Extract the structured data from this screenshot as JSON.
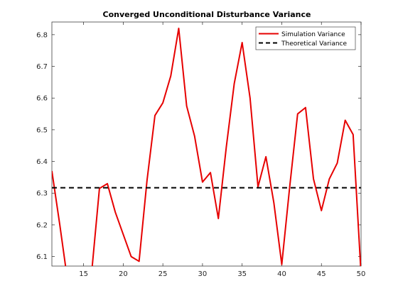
{
  "chart_data": {
    "type": "line",
    "title": "Converged Unconditional Disturbance Variance",
    "xlabel": "",
    "ylabel": "",
    "xlim": [
      11,
      50
    ],
    "ylim": [
      6.07,
      6.84
    ],
    "xticks": [
      15,
      20,
      25,
      30,
      35,
      40,
      45,
      50
    ],
    "yticks": [
      6.1,
      6.2,
      6.3,
      6.4,
      6.5,
      6.6,
      6.7,
      6.8
    ],
    "xtick_labels": [
      "15",
      "20",
      "25",
      "30",
      "35",
      "40",
      "45",
      "50"
    ],
    "ytick_labels": [
      "6.1",
      "6.2",
      "6.3",
      "6.4",
      "6.5",
      "6.6",
      "6.7",
      "6.8"
    ],
    "grid": false,
    "legend_position": "top-right",
    "series": [
      {
        "name": "Simulation Variance",
        "style": "solid",
        "color": "#e60000",
        "x": [
          11,
          12,
          13,
          14,
          15,
          16,
          17,
          18,
          19,
          20,
          21,
          22,
          23,
          24,
          25,
          26,
          27,
          28,
          29,
          30,
          31,
          32,
          33,
          34,
          35,
          36,
          37,
          38,
          39,
          40,
          41,
          42,
          43,
          44,
          45,
          46,
          47,
          48,
          49,
          50
        ],
        "values": [
          6.37,
          6.2,
          6.02,
          6.045,
          6.01,
          6.045,
          6.315,
          6.33,
          6.24,
          6.17,
          6.1,
          6.085,
          6.34,
          6.545,
          6.585,
          6.67,
          6.82,
          6.575,
          6.48,
          6.335,
          6.365,
          6.22,
          6.445,
          6.645,
          6.775,
          6.6,
          6.32,
          6.415,
          6.27,
          6.075,
          6.32,
          6.55,
          6.57,
          6.345,
          6.245,
          6.345,
          6.395,
          6.53,
          6.485,
          6.045
        ]
      },
      {
        "name": "Theoretical Variance",
        "style": "dashed",
        "color": "#000000",
        "x": [
          11,
          50
        ],
        "values": [
          6.317,
          6.317
        ]
      }
    ]
  }
}
